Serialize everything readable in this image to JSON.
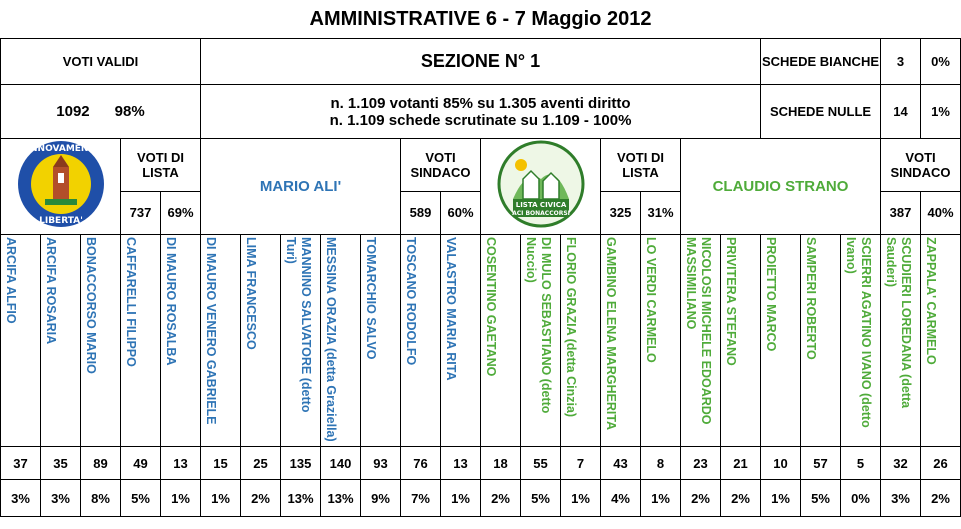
{
  "title": "AMMINISTRATIVE 6 - 7 Maggio 2012",
  "voti_validi": {
    "label": "VOTI VALIDI",
    "value": "1092",
    "pct": "98%"
  },
  "sezione": "SEZIONE N° 1",
  "affluenza": {
    "line1": "n. 1.109 votanti 85% su 1.305 aventi diritto",
    "line2": "n. 1.109 schede scrutinate su 1.109  - 100%"
  },
  "schede_bianche": {
    "label": "SCHEDE BIANCHE",
    "value": "3",
    "pct": "0%"
  },
  "schede_nulle": {
    "label": "SCHEDE NULLE",
    "value": "14",
    "pct": "1%"
  },
  "lists": [
    {
      "logo_text": "RINNOVAMENTO LIBERTA'",
      "voti_lista_label": "VOTI DI LISTA",
      "voti_lista": "737",
      "voti_lista_pct": "69%",
      "sindaco": "MARIO ALI'",
      "voti_sindaco_label": "VOTI SINDACO",
      "voti_sindaco": "589",
      "voti_sindaco_pct": "60%",
      "color": "#2e74b5"
    },
    {
      "logo_text": "LISTA CIVICA PER ACI BONACCORSI",
      "voti_lista_label": "VOTI DI LISTA",
      "voti_lista": "325",
      "voti_lista_pct": "31%",
      "sindaco": "CLAUDIO STRANO",
      "voti_sindaco_label": "VOTI SINDACO",
      "voti_sindaco": "387",
      "voti_sindaco_pct": "40%",
      "color": "#4fab3a"
    }
  ],
  "candidates": [
    {
      "name": "ARCIFA ALFIO",
      "votes": "37",
      "pct": "3%"
    },
    {
      "name": "ARCIFA ROSARIA",
      "votes": "35",
      "pct": "3%"
    },
    {
      "name": "BONACCORSO MARIO",
      "votes": "89",
      "pct": "8%"
    },
    {
      "name": "CAFFARELLI FILIPPO",
      "votes": "49",
      "pct": "5%"
    },
    {
      "name": "DI MAURO ROSALBA",
      "votes": "13",
      "pct": "1%"
    },
    {
      "name": "DI MAURO VENERO GABRIELE",
      "votes": "15",
      "pct": "1%"
    },
    {
      "name": "LIMA FRANCESCO",
      "votes": "25",
      "pct": "2%"
    },
    {
      "name": "MANNINO SALVATORE (detto Turi)",
      "votes": "135",
      "pct": "13%"
    },
    {
      "name": "MESSINA  ORAZIA (detta Graziella)",
      "votes": "140",
      "pct": "13%"
    },
    {
      "name": "TOMARCHIO SALVO",
      "votes": "93",
      "pct": "9%"
    },
    {
      "name": "TOSCANO RODOLFO",
      "votes": "76",
      "pct": "7%"
    },
    {
      "name": "VALASTRO MARIA RITA",
      "votes": "13",
      "pct": "1%"
    },
    {
      "name": "COSENTINO GAETANO",
      "votes": "18",
      "pct": "2%"
    },
    {
      "name": "DI MULO SEBASTIANO (detto Nuccio)",
      "votes": "55",
      "pct": "5%"
    },
    {
      "name": "FLORIO GRAZIA  (detta Cinzia)",
      "votes": "7",
      "pct": "1%"
    },
    {
      "name": "GAMBINO ELENA MARGHERITA",
      "votes": "43",
      "pct": "4%"
    },
    {
      "name": "LO VERDI CARMELO",
      "votes": "8",
      "pct": "1%"
    },
    {
      "name": "NICOLOSI MICHELE EDOARDO MASSIMILIANO",
      "votes": "23",
      "pct": "2%"
    },
    {
      "name": "PRIVITERA STEFANO",
      "votes": "21",
      "pct": "2%"
    },
    {
      "name": "PROIETTO MARCO",
      "votes": "10",
      "pct": "1%"
    },
    {
      "name": "SAMPERI ROBERTO",
      "votes": "57",
      "pct": "5%"
    },
    {
      "name": "SCIERRI AGATINO IVANO (detto Ivano)",
      "votes": "5",
      "pct": "0%"
    },
    {
      "name": "SCUDIERI LOREDANA (detta Sauderi)",
      "votes": "32",
      "pct": "3%"
    },
    {
      "name": "ZAPPALA' CARMELO",
      "votes": "26",
      "pct": "2%"
    }
  ]
}
